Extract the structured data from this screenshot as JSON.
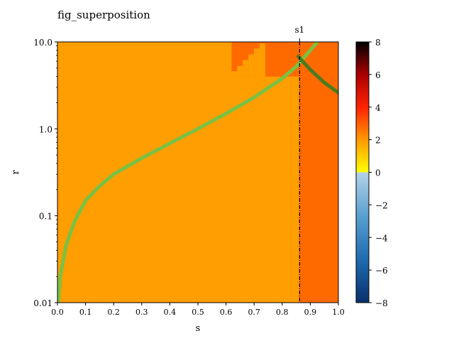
{
  "chart_data": {
    "type": "heatmap",
    "title": "fig_superposition",
    "xlabel": "s",
    "ylabel": "r",
    "x_scale": "linear",
    "y_scale": "log",
    "xlim": [
      0.0,
      1.0
    ],
    "ylim": [
      0.01,
      10.0
    ],
    "x_ticks": [
      "0.0",
      "0.1",
      "0.2",
      "0.3",
      "0.4",
      "0.5",
      "0.6",
      "0.7",
      "0.8",
      "0.9",
      "1.0"
    ],
    "y_ticks": [
      "0.01",
      "0.1",
      "1.0",
      "10.0"
    ],
    "grid": false,
    "colorbar": {
      "min": -8,
      "max": 8,
      "ticks": [
        "8",
        "6",
        "4",
        "2",
        "0",
        "−2",
        "−4",
        "−6",
        "−8"
      ],
      "colors_positive": [
        "#ffff00",
        "#ff9900",
        "#ff2200",
        "#aa0000",
        "#000000"
      ],
      "colors_negative": [
        "#b4d2e8",
        "#5aa0d0",
        "#1f6cb0",
        "#08306b"
      ]
    },
    "regions": [
      {
        "s": [
          0.0,
          0.86
        ],
        "r": [
          0.01,
          10.0
        ],
        "value": 2.0,
        "color": "#ff9e00"
      },
      {
        "s": [
          0.86,
          1.0
        ],
        "r": [
          0.01,
          10.0
        ],
        "value": 2.8,
        "color": "#ff6a00"
      },
      {
        "s": [
          0.62,
          0.86
        ],
        "r": [
          4.0,
          10.0
        ],
        "value": 2.8,
        "color": "#ff6a00"
      }
    ],
    "vline": {
      "s": 0.862,
      "label": "s1",
      "style": "dashdot"
    },
    "series": [
      {
        "color": "#7ac143",
        "points": [
          [
            0.003,
            0.01
          ],
          [
            0.01,
            0.02
          ],
          [
            0.03,
            0.045
          ],
          [
            0.06,
            0.085
          ],
          [
            0.1,
            0.15
          ],
          [
            0.15,
            0.22
          ],
          [
            0.2,
            0.3
          ],
          [
            0.3,
            0.46
          ],
          [
            0.4,
            0.68
          ],
          [
            0.5,
            1.0
          ],
          [
            0.6,
            1.5
          ],
          [
            0.7,
            2.3
          ],
          [
            0.8,
            3.8
          ],
          [
            0.85,
            5.2
          ],
          [
            0.9,
            8.0
          ],
          [
            0.925,
            10.0
          ]
        ]
      },
      {
        "color": "#4d7a1e",
        "points": [
          [
            0.857,
            6.8
          ],
          [
            0.9,
            4.8
          ],
          [
            0.95,
            3.4
          ],
          [
            1.0,
            2.6
          ]
        ]
      }
    ]
  }
}
